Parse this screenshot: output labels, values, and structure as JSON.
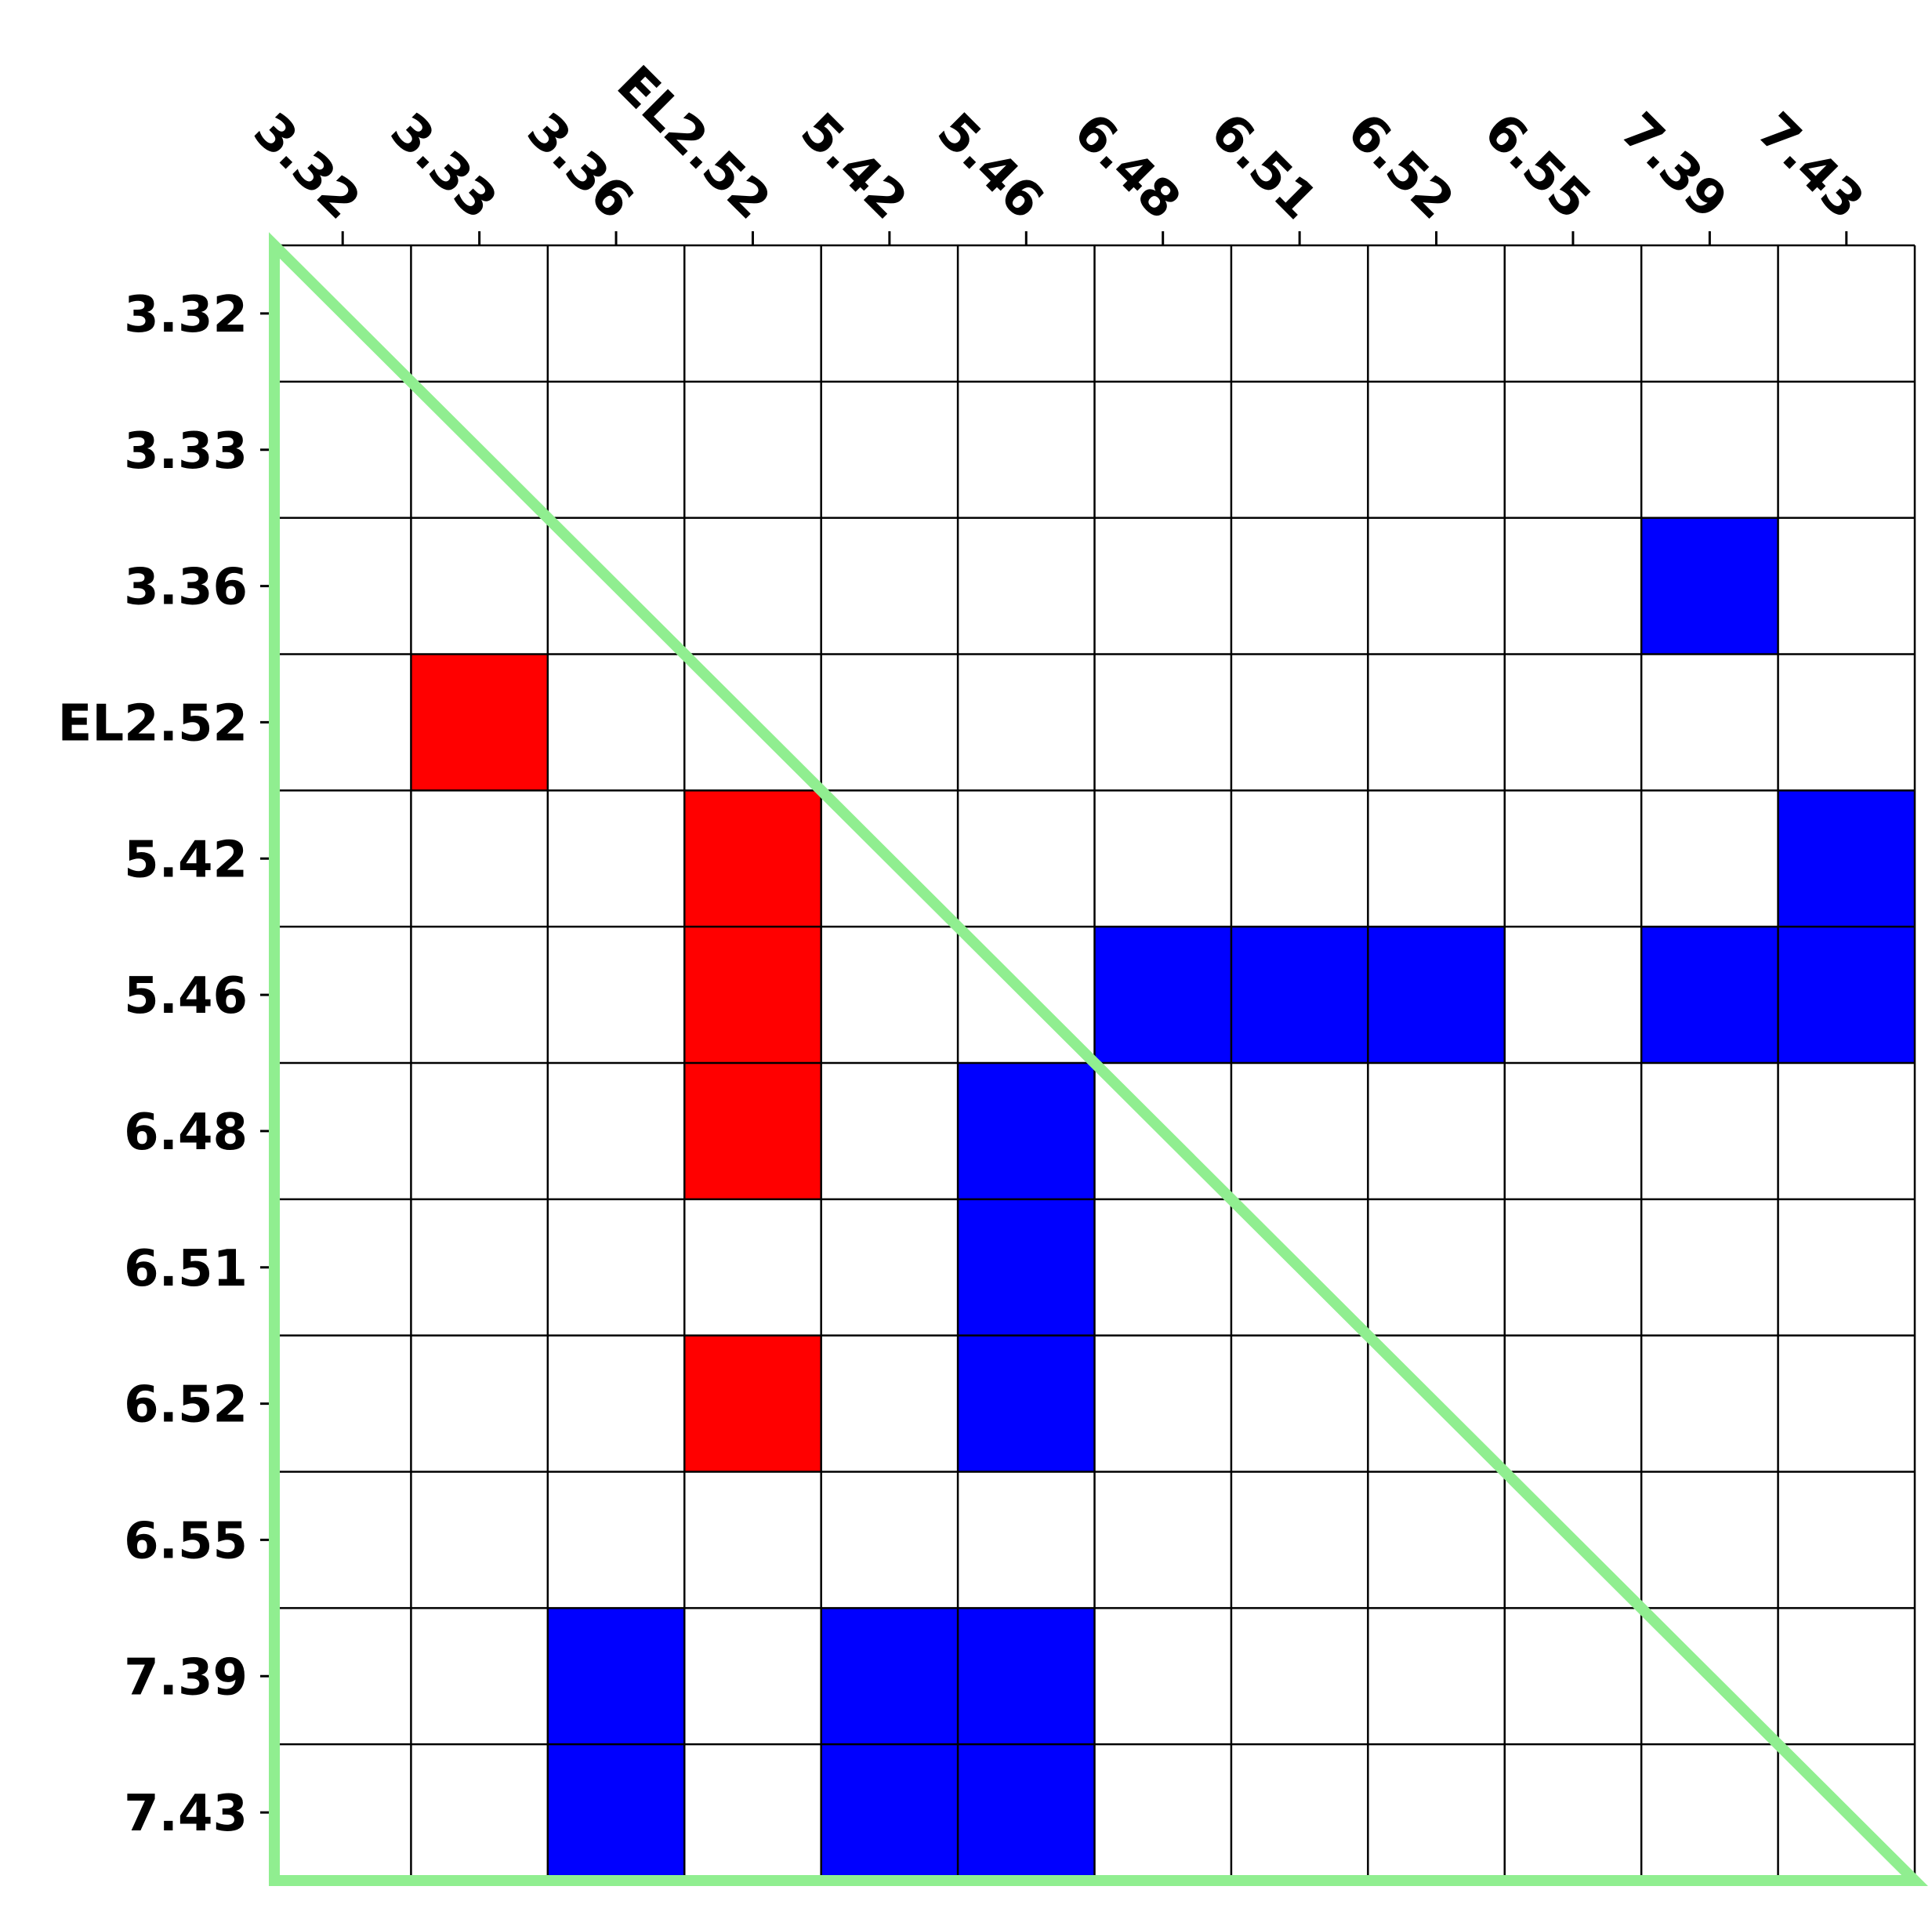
{
  "chart_data": {
    "type": "heatmap",
    "title": "",
    "xlabel": "",
    "ylabel": "",
    "x_tick_position": "top",
    "x_categories": [
      "3.32",
      "3.33",
      "3.36",
      "EL2.52",
      "5.42",
      "5.46",
      "6.48",
      "6.51",
      "6.52",
      "6.55",
      "7.39",
      "7.43"
    ],
    "y_categories": [
      "3.32",
      "3.33",
      "3.36",
      "EL2.52",
      "5.42",
      "5.46",
      "6.48",
      "6.51",
      "6.52",
      "6.55",
      "7.39",
      "7.43"
    ],
    "value_colors": {
      "0": "#ffffff",
      "1": "#ff0000",
      "2": "#0000ff"
    },
    "grid": true,
    "grid_color": "#000000",
    "triangle_outline_color": "#90ee90",
    "matrix": [
      [
        0,
        0,
        0,
        0,
        0,
        0,
        0,
        0,
        0,
        0,
        0,
        0
      ],
      [
        0,
        0,
        0,
        0,
        0,
        0,
        0,
        0,
        0,
        0,
        0,
        0
      ],
      [
        0,
        0,
        0,
        0,
        0,
        0,
        0,
        0,
        0,
        0,
        2,
        0
      ],
      [
        0,
        1,
        0,
        0,
        0,
        0,
        0,
        0,
        0,
        0,
        0,
        0
      ],
      [
        0,
        0,
        0,
        1,
        0,
        0,
        0,
        0,
        0,
        0,
        0,
        2
      ],
      [
        0,
        0,
        0,
        1,
        0,
        0,
        2,
        2,
        2,
        0,
        2,
        2
      ],
      [
        0,
        0,
        0,
        1,
        0,
        2,
        0,
        0,
        0,
        0,
        0,
        0
      ],
      [
        0,
        0,
        0,
        0,
        0,
        2,
        0,
        0,
        0,
        0,
        0,
        0
      ],
      [
        0,
        0,
        0,
        1,
        0,
        2,
        0,
        0,
        0,
        0,
        0,
        0
      ],
      [
        0,
        0,
        0,
        0,
        0,
        0,
        0,
        0,
        0,
        0,
        0,
        0
      ],
      [
        0,
        0,
        2,
        0,
        2,
        2,
        0,
        0,
        0,
        0,
        0,
        0
      ],
      [
        0,
        0,
        2,
        0,
        2,
        2,
        0,
        0,
        0,
        0,
        0,
        0
      ]
    ]
  }
}
